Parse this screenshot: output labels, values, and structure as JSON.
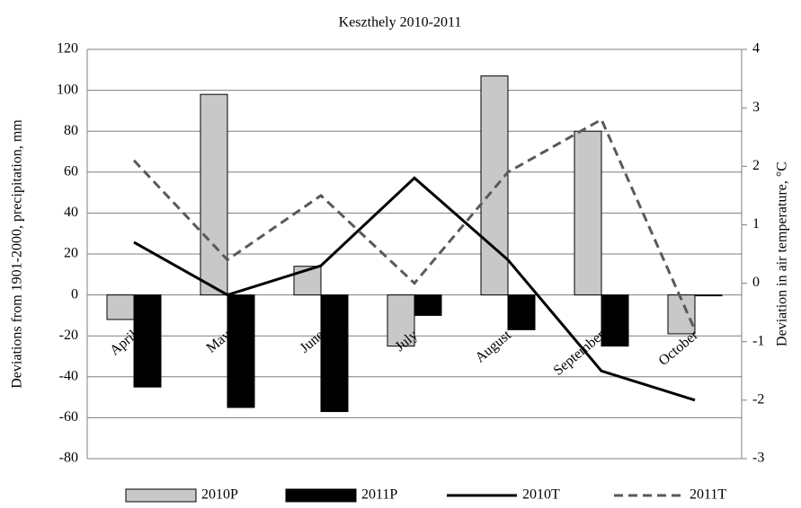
{
  "chart_data": {
    "type": "bar_line",
    "title": "Keszthely 2010-2011",
    "ylabel": "Deviations from 1901-2000, precipitation, mm",
    "y2label": "Deviation in air temperature, °C",
    "categories": [
      "April",
      "May",
      "June",
      "July",
      "August",
      "September",
      "October"
    ],
    "series": [
      {
        "name": "2010P",
        "type": "bar",
        "color": "#c8c8c8",
        "values": [
          -12,
          98,
          14,
          -25,
          107,
          80,
          -19
        ]
      },
      {
        "name": "2011P",
        "type": "bar",
        "color": "#000000",
        "values": [
          -45,
          -55,
          -57,
          -10,
          -17,
          -25,
          0
        ]
      },
      {
        "name": "2010T",
        "type": "line",
        "axis": "y2",
        "color": "#000000",
        "dash": false,
        "values": [
          0.7,
          -0.2,
          0.3,
          1.8,
          0.4,
          -1.5,
          -2.0
        ]
      },
      {
        "name": "2011T",
        "type": "line",
        "axis": "y2",
        "color": "#595959",
        "dash": true,
        "values": [
          2.1,
          0.4,
          1.5,
          0.0,
          1.9,
          2.8,
          -0.8
        ]
      }
    ],
    "ylim": [
      -80,
      120
    ],
    "yticks": [
      -80,
      -60,
      -40,
      -20,
      0,
      20,
      40,
      60,
      80,
      100,
      120
    ],
    "y2lim": [
      -3,
      4
    ],
    "y2ticks": [
      -3,
      -2,
      -1,
      0,
      1,
      2,
      3,
      4
    ],
    "grid": true,
    "legend": "bottom"
  }
}
